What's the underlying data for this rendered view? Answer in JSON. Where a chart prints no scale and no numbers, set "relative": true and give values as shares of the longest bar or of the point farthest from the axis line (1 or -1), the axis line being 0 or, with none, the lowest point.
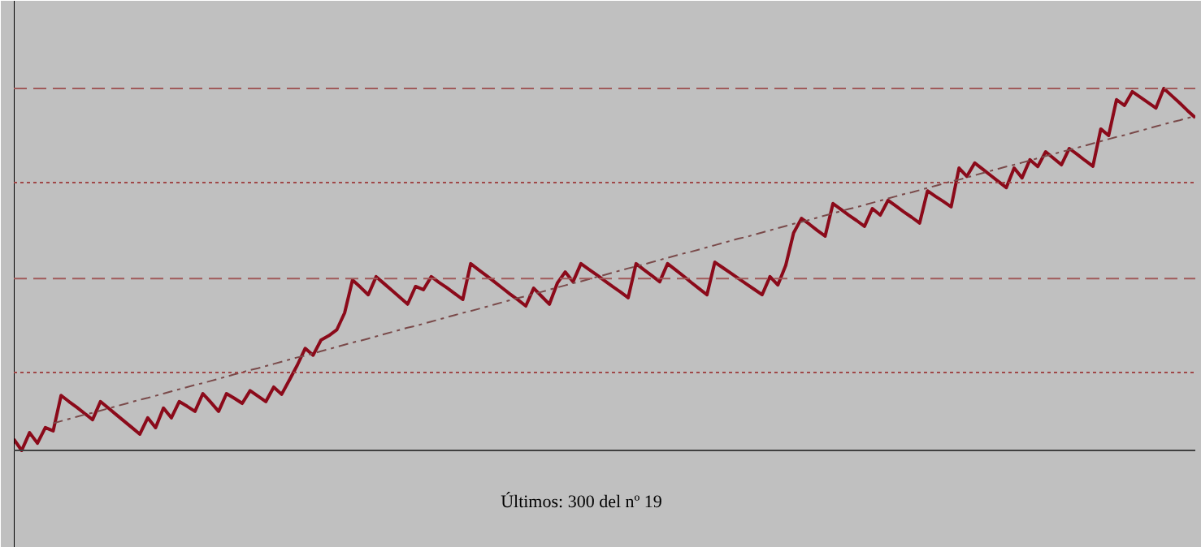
{
  "chart_data": {
    "type": "line",
    "relative": true,
    "grid": false,
    "categories": [
      null,
      null,
      null,
      null,
      null,
      null,
      null,
      null,
      null,
      null,
      null,
      null,
      null,
      null,
      null,
      null,
      null,
      null,
      null,
      null,
      null,
      null,
      null,
      null,
      null,
      null,
      null,
      null,
      null,
      null,
      null,
      null,
      null,
      null,
      null,
      null,
      null,
      null,
      null,
      null,
      null,
      null,
      null,
      null,
      null,
      null,
      null,
      null,
      null,
      null,
      null,
      null,
      null,
      null,
      null,
      null,
      null,
      null,
      null,
      null,
      null,
      null,
      null,
      null,
      null,
      null,
      null,
      null,
      null,
      null,
      null,
      null,
      null,
      null,
      null,
      null,
      null,
      null,
      null,
      null,
      null,
      null,
      null,
      null,
      null,
      null,
      null,
      null,
      null,
      null,
      null,
      null,
      null,
      null,
      null,
      null,
      null,
      null,
      null,
      null,
      null,
      null,
      null,
      null,
      null,
      null,
      null,
      null,
      null,
      null,
      null,
      null,
      null,
      null,
      null,
      null,
      null,
      null,
      null,
      null,
      null,
      null,
      null,
      null,
      null,
      null,
      null,
      null,
      null,
      null,
      null,
      null,
      null,
      null,
      null,
      null,
      null,
      null,
      null,
      null,
      null,
      null,
      null,
      null,
      null,
      null,
      null,
      null,
      null,
      null,
      null
    ],
    "annotations": [
      "Últimos:  300 del nº  19"
    ],
    "ref_lines": [
      {
        "axis": "y",
        "value": 1.0,
        "label": null,
        "color": "#a05a5a",
        "line_style": "dashed"
      },
      {
        "axis": "y",
        "value": 0.74,
        "label": null,
        "color": "#a04848",
        "line_style": "dotted"
      },
      {
        "axis": "y",
        "value": 0.475,
        "label": null,
        "color": "#a05a5a",
        "line_style": "dashed"
      },
      {
        "axis": "y",
        "value": 0.215,
        "label": null,
        "color": "#a04848",
        "line_style": "dotted"
      }
    ],
    "series": [
      {
        "color": "#8b0a1a",
        "line_style": "solid",
        "values": [
          0.031,
          0,
          0.049,
          0.02,
          0.063,
          0.054,
          0.152,
          0.135,
          0.119,
          0.102,
          0.085,
          0.135,
          0.117,
          0.099,
          0.081,
          0.063,
          0.045,
          0.09,
          0.063,
          0.117,
          0.09,
          0.135,
          0.122,
          0.108,
          0.157,
          0.133,
          0.108,
          0.157,
          0.144,
          0.13,
          0.165,
          0.15,
          0.135,
          0.175,
          0.155,
          0.195,
          0.236,
          0.282,
          0.263,
          0.305,
          0.317,
          0.333,
          0.38,
          0.471,
          0.451,
          0.43,
          0.48,
          0.461,
          0.442,
          0.423,
          0.404,
          0.453,
          0.444,
          0.48,
          0.464,
          0.449,
          0.433,
          0.417,
          0.516,
          0.499,
          0.483,
          0.466,
          0.449,
          0.432,
          0.416,
          0.399,
          0.448,
          0.426,
          0.404,
          0.462,
          0.493,
          0.466,
          0.516,
          0.5,
          0.485,
          0.469,
          0.453,
          0.438,
          0.422,
          0.516,
          0.499,
          0.483,
          0.466,
          0.516,
          0.499,
          0.482,
          0.464,
          0.447,
          0.43,
          0.52,
          0.505,
          0.49,
          0.475,
          0.46,
          0.445,
          0.43,
          0.48,
          0.457,
          0.511,
          0.601,
          0.641,
          0.625,
          0.608,
          0.592,
          0.682,
          0.666,
          0.65,
          0.635,
          0.619,
          0.668,
          0.65,
          0.691,
          0.675,
          0.659,
          0.644,
          0.628,
          0.717,
          0.702,
          0.688,
          0.673,
          0.78,
          0.757,
          0.794,
          0.777,
          0.76,
          0.743,
          0.726,
          0.78,
          0.753,
          0.803,
          0.784,
          0.825,
          0.807,
          0.789,
          0.834,
          0.818,
          0.801,
          0.785,
          0.888,
          0.87,
          0.969,
          0.953,
          0.991,
          0.976,
          0.961,
          0.946,
          1,
          0.98,
          0.96,
          0.939,
          0.919
        ]
      },
      {
        "type": "line",
        "color": "#7a4a4a",
        "line_style": "dashdot",
        "values": [
          null,
          null,
          null,
          null,
          null,
          0.075,
          0.081,
          0.087,
          0.093,
          0.099,
          0.104,
          0.11,
          0.116,
          0.122,
          0.128,
          0.134,
          0.14,
          0.145,
          0.151,
          0.157,
          0.163,
          0.169,
          0.175,
          0.181,
          0.186,
          0.192,
          0.198,
          0.204,
          0.21,
          0.216,
          0.222,
          0.227,
          0.233,
          0.239,
          0.245,
          0.251,
          0.257,
          0.262,
          0.268,
          0.274,
          0.28,
          0.286,
          0.292,
          0.298,
          0.303,
          0.309,
          0.315,
          0.321,
          0.327,
          0.333,
          0.339,
          0.344,
          0.35,
          0.356,
          0.362,
          0.368,
          0.374,
          0.38,
          0.385,
          0.391,
          0.397,
          0.403,
          0.409,
          0.415,
          0.421,
          0.426,
          0.432,
          0.438,
          0.444,
          0.45,
          0.456,
          0.462,
          0.467,
          0.473,
          0.479,
          0.485,
          0.491,
          0.497,
          0.503,
          0.508,
          0.514,
          0.52,
          0.526,
          0.532,
          0.538,
          0.544,
          0.549,
          0.555,
          0.561,
          0.567,
          0.573,
          0.579,
          0.585,
          0.59,
          0.596,
          0.602,
          0.608,
          0.614,
          0.62,
          0.626,
          0.631,
          0.637,
          0.643,
          0.649,
          0.655,
          0.661,
          0.667,
          0.672,
          0.678,
          0.684,
          0.69,
          0.696,
          0.702,
          0.708,
          0.713,
          0.719,
          0.725,
          0.731,
          0.737,
          0.743,
          0.748,
          0.754,
          0.76,
          0.766,
          0.772,
          0.778,
          0.784,
          0.789,
          0.795,
          0.801,
          0.807,
          0.813,
          0.819,
          0.825,
          0.83,
          0.836,
          0.842,
          0.848,
          0.854,
          0.86,
          0.866,
          0.871,
          0.877,
          0.883,
          0.889,
          0.895,
          0.901,
          0.907,
          0.912,
          0.918,
          0.924
        ]
      }
    ]
  }
}
